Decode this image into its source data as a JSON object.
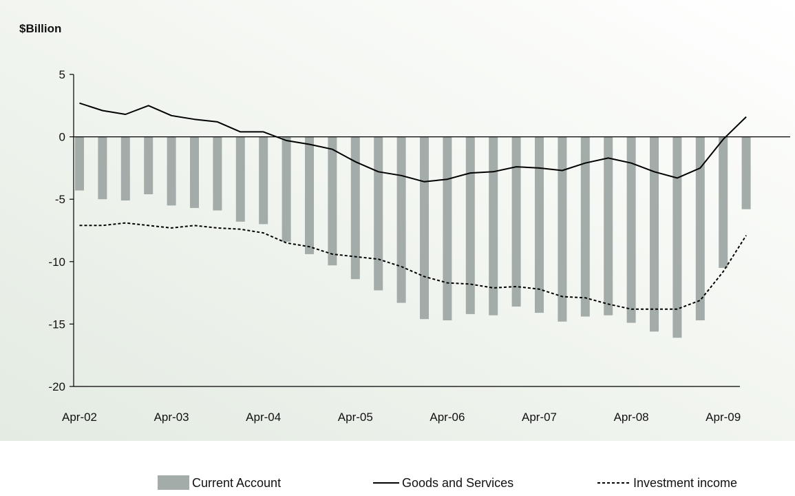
{
  "chart_data": {
    "type": "bar",
    "unit_label": "$Billion",
    "ylim": [
      -20,
      5
    ],
    "yticks": [
      5,
      0,
      -5,
      -10,
      -15,
      -20
    ],
    "x_tick_labels": [
      "Apr-02",
      "Apr-03",
      "Apr-04",
      "Apr-05",
      "Apr-06",
      "Apr-07",
      "Apr-08",
      "Apr-09"
    ],
    "x_tick_period_index": [
      0,
      4,
      8,
      12,
      16,
      20,
      24,
      28
    ],
    "period_count": 30,
    "grid": false,
    "legend_placement": "bottom",
    "series": [
      {
        "name": "Current Account",
        "type": "bar",
        "color": "#a3aca9",
        "values": [
          -4.3,
          -5.0,
          -5.1,
          -4.6,
          -5.5,
          -5.7,
          -5.9,
          -6.8,
          -7.0,
          -8.4,
          -9.4,
          -10.3,
          -11.4,
          -12.3,
          -13.3,
          -14.6,
          -14.7,
          -14.2,
          -14.3,
          -13.6,
          -14.1,
          -14.8,
          -14.4,
          -14.3,
          -14.9,
          -15.6,
          -16.1,
          -14.7,
          -10.5,
          -5.8
        ]
      },
      {
        "name": "Goods and Services",
        "type": "line",
        "style": "solid",
        "color": "#000000",
        "values": [
          2.7,
          2.1,
          1.8,
          2.5,
          1.7,
          1.4,
          1.2,
          0.4,
          0.4,
          -0.3,
          -0.6,
          -1.0,
          -2.0,
          -2.8,
          -3.1,
          -3.6,
          -3.4,
          -2.9,
          -2.8,
          -2.4,
          -2.5,
          -2.7,
          -2.1,
          -1.7,
          -2.1,
          -2.8,
          -3.3,
          -2.5,
          -0.2,
          1.6
        ]
      },
      {
        "name": "Investment income",
        "type": "line",
        "style": "dashed",
        "color": "#000000",
        "values": [
          -7.1,
          -7.1,
          -6.9,
          -7.1,
          -7.3,
          -7.1,
          -7.3,
          -7.4,
          -7.7,
          -8.5,
          -8.8,
          -9.4,
          -9.6,
          -9.8,
          -10.4,
          -11.2,
          -11.7,
          -11.8,
          -12.1,
          -12.0,
          -12.2,
          -12.8,
          -12.9,
          -13.4,
          -13.8,
          -13.8,
          -13.8,
          -13.1,
          -10.8,
          -7.9
        ]
      }
    ]
  }
}
